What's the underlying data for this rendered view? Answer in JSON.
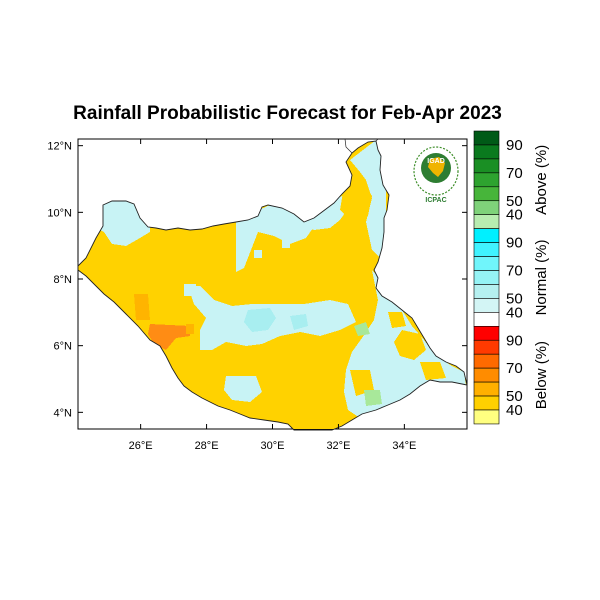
{
  "title": "Rainfall Probabilistic Forecast for Feb-Apr 2023",
  "logo": {
    "top_text": "IGAD",
    "bottom_text": "ICPAC",
    "icon": "igad-icpac-logo"
  },
  "map": {
    "lon_ticks": [
      {
        "value": 26,
        "label": "26°E"
      },
      {
        "value": 28,
        "label": "28°E"
      },
      {
        "value": 30,
        "label": "30°E"
      },
      {
        "value": 32,
        "label": "32°E"
      },
      {
        "value": 34,
        "label": "34°E"
      }
    ],
    "lat_ticks": [
      {
        "value": 12,
        "label": "12°N"
      },
      {
        "value": 10,
        "label": "10°N"
      },
      {
        "value": 8,
        "label": "8°N"
      },
      {
        "value": 6,
        "label": "6°N"
      },
      {
        "value": 4,
        "label": "4°N"
      }
    ],
    "lon_range": [
      24.1,
      35.9
    ],
    "lat_range": [
      3.5,
      12.2
    ]
  },
  "colorbar": {
    "groups": [
      {
        "name": "Above (%)",
        "labels": [
          "90",
          "70",
          "50",
          "40"
        ],
        "colors": [
          "#005a17",
          "#0a7a1e",
          "#1a8f24",
          "#2ea32f",
          "#47b53a",
          "#7fd27a",
          "#b8ecb0"
        ]
      },
      {
        "name": "Normal (%)",
        "labels": [
          "90",
          "70",
          "50",
          "40"
        ],
        "colors": [
          "#00f0ff",
          "#40f3ff",
          "#70f5fb",
          "#95f3f5",
          "#b5f0f0",
          "#d3f5f5",
          "#ffffff"
        ]
      },
      {
        "name": "Below (%)",
        "labels": [
          "90",
          "70",
          "50",
          "40"
        ],
        "colors": [
          "#ff0000",
          "#ff3a00",
          "#ff6a00",
          "#ff8c00",
          "#ffb000",
          "#ffd000",
          "#ffff80"
        ]
      }
    ]
  },
  "colors": {
    "below_40": "#ffd200",
    "below_50": "#ffb400",
    "below_70": "#ff8c14",
    "normal_40": "#c8f3f5",
    "normal_50": "#a8eef0",
    "above_40": "#a8e89a",
    "border": "#222222"
  }
}
